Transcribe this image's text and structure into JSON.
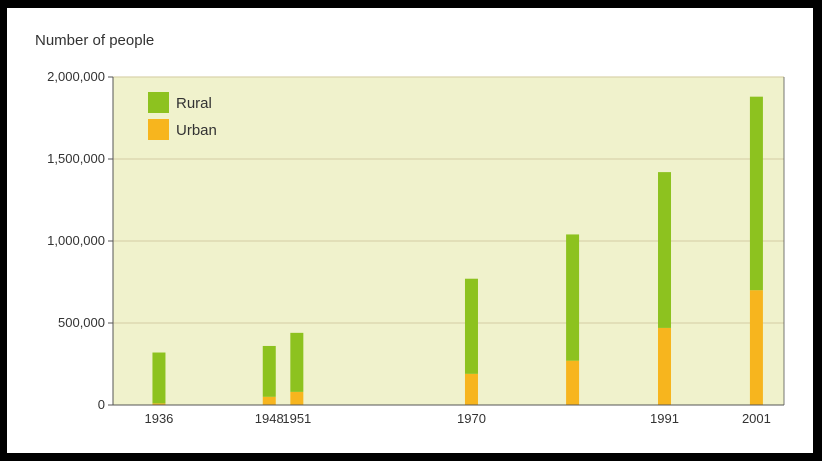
{
  "chart_data": {
    "type": "bar",
    "stacked": true,
    "title": "Number of people",
    "x": [
      1936,
      1948,
      1951,
      1970,
      1981,
      1991,
      2001
    ],
    "x_tick_labels": [
      "1936",
      "1948",
      "1951",
      "1970",
      "",
      "1991",
      "2001"
    ],
    "xlim": [
      1931,
      2004
    ],
    "ylim": [
      0,
      2000000
    ],
    "y_ticks": [
      0,
      500000,
      1000000,
      1500000,
      2000000
    ],
    "y_tick_labels": [
      "0",
      "500,000",
      "1,000,000",
      "1,500,000",
      "2,000,000"
    ],
    "grid": true,
    "legend_position": "top-left",
    "series": [
      {
        "name": "Urban",
        "color": "#f7b51e",
        "values": [
          10000,
          50000,
          80000,
          190000,
          270000,
          470000,
          700000
        ]
      },
      {
        "name": "Rural",
        "color": "#8dc21f",
        "values": [
          310000,
          310000,
          360000,
          580000,
          770000,
          950000,
          1180000
        ]
      }
    ],
    "legend": [
      {
        "name": "Rural",
        "color": "#8dc21f"
      },
      {
        "name": "Urban",
        "color": "#f7b51e"
      }
    ]
  },
  "colors": {
    "plot_background": "#f0f2cc",
    "gridline": "#d9d4ac",
    "axis": "#555555"
  }
}
